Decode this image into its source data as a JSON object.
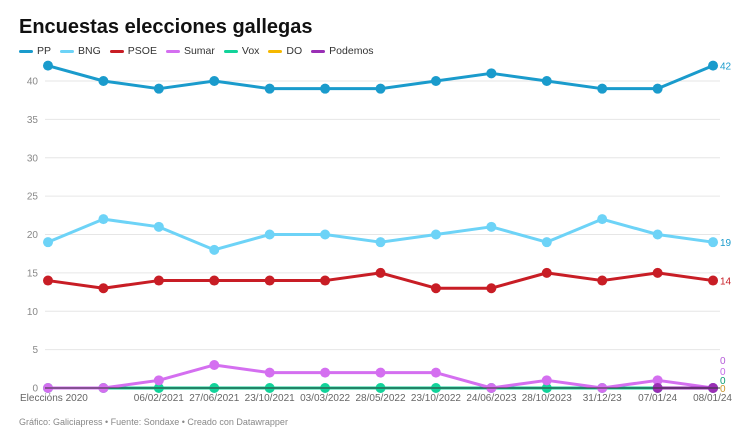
{
  "title": "Encuestas elecciones gallegas",
  "footer": "Gráfico: Galiciapress • Fuente: Sondaxe • Creado con Datawrapper",
  "chart_data": {
    "type": "line",
    "title": "Encuestas elecciones gallegas",
    "categories": [
      "Elecciόns 2020",
      "",
      "06/02/2021",
      "27/06/2021",
      "23/10/2021",
      "03/03/2022",
      "28/05/2022",
      "23/10/2022",
      "24/06/2023",
      "28/10/2023",
      "31/12/23",
      "07/01/24",
      "08/01/24"
    ],
    "y_ticks": [
      0,
      5,
      10,
      15,
      20,
      25,
      30,
      35,
      40
    ],
    "ylim": [
      0,
      42
    ],
    "grid": true,
    "legend_position": "top-left",
    "series": [
      {
        "name": "PP",
        "color": "#1a9bcc",
        "values": [
          42,
          40,
          39,
          40,
          39,
          39,
          39,
          40,
          41,
          40,
          39,
          39,
          42
        ]
      },
      {
        "name": "BNG",
        "color": "#6dd3f7",
        "values": [
          19,
          22,
          21,
          18,
          20,
          20,
          19,
          20,
          21,
          19,
          22,
          20,
          19
        ]
      },
      {
        "name": "PSOE",
        "color": "#c81d25",
        "values": [
          14,
          13,
          14,
          14,
          14,
          14,
          15,
          13,
          13,
          15,
          14,
          15,
          14
        ]
      },
      {
        "name": "Sumar",
        "color": "#d46ff0",
        "values": [
          0,
          0,
          1,
          3,
          2,
          2,
          2,
          2,
          0,
          1,
          0,
          1,
          0
        ]
      },
      {
        "name": "Vox",
        "color": "#12d39a",
        "values": [
          0,
          0,
          0,
          0,
          0,
          0,
          0,
          0,
          0,
          0,
          0,
          0,
          0
        ]
      },
      {
        "name": "DO",
        "color": "#f5b800",
        "values": [
          null,
          null,
          null,
          null,
          null,
          null,
          null,
          null,
          null,
          null,
          null,
          null,
          0
        ]
      },
      {
        "name": "Podemos",
        "color": "#9a2fb5",
        "values": [
          null,
          null,
          null,
          null,
          null,
          null,
          null,
          null,
          null,
          null,
          null,
          0,
          0
        ]
      }
    ]
  }
}
